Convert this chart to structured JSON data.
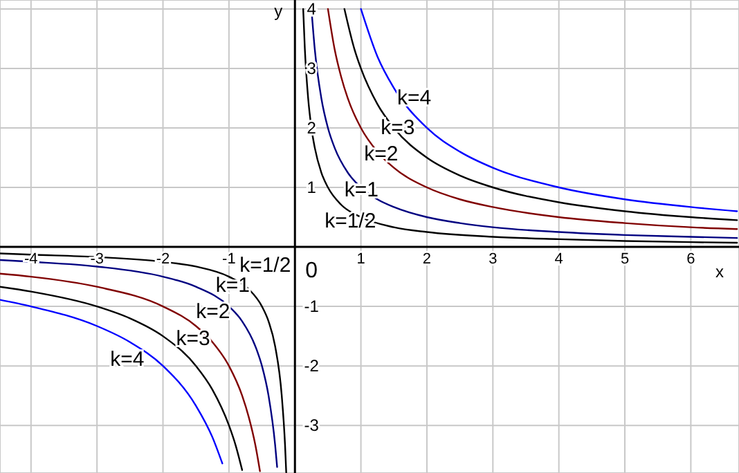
{
  "chart_data": {
    "type": "line",
    "xlabel": "x",
    "ylabel": "y",
    "xlim": [
      -4.47,
      6.73
    ],
    "ylim": [
      -3.8,
      4.15
    ],
    "xticks": [
      -4,
      -3,
      -2,
      -1,
      1,
      2,
      3,
      4,
      5,
      6
    ],
    "yticks": [
      -3,
      -2,
      -1,
      1,
      2,
      3,
      4
    ],
    "grid": true,
    "legend": false,
    "marker": "none",
    "line_style": "solid",
    "annotations": [
      "0"
    ],
    "series": [
      {
        "name": "k=1/2",
        "color": "#000000",
        "x": [
          -4.47,
          -4,
          -3,
          -2,
          -1.5,
          -1,
          -0.7,
          -0.5,
          -0.4,
          -0.3,
          -0.2,
          -0.15,
          -0.132,
          0,
          0.125,
          0.15,
          0.2,
          0.25,
          0.3,
          0.4,
          0.5,
          0.7,
          1,
          1.5,
          2,
          3,
          4,
          5,
          6,
          6.7
        ],
        "values": [
          -0.11,
          -0.13,
          -0.17,
          -0.25,
          -0.33,
          -0.5,
          -0.71,
          -1,
          -1.25,
          -1.67,
          -2.5,
          -3.33,
          -3.79,
          null,
          4,
          3.33,
          2.5,
          2,
          1.67,
          1.25,
          1,
          0.71,
          0.5,
          0.33,
          0.25,
          0.17,
          0.13,
          0.1,
          0.08,
          0.07
        ]
      },
      {
        "name": "k=1",
        "color": "#000080",
        "x": [
          -4.47,
          -4,
          -3,
          -2,
          -1.5,
          -1,
          -0.8,
          -0.6,
          -0.5,
          -0.4,
          -0.3,
          -0.27,
          0,
          0.25,
          0.3,
          0.4,
          0.5,
          0.6,
          0.8,
          1,
          1.25,
          1.5,
          2,
          2.5,
          3,
          4,
          5,
          6,
          6.7
        ],
        "values": [
          -0.22,
          -0.25,
          -0.33,
          -0.5,
          -0.67,
          -1,
          -1.25,
          -1.67,
          -2,
          -2.5,
          -3.33,
          -3.7,
          null,
          4,
          3.33,
          2.5,
          2,
          1.67,
          1.25,
          1,
          0.8,
          0.67,
          0.5,
          0.4,
          0.33,
          0.25,
          0.2,
          0.17,
          0.15
        ]
      },
      {
        "name": "k=2",
        "color": "#800000",
        "x": [
          -4.47,
          -4,
          -3,
          -2,
          -1.5,
          -1.25,
          -1,
          -0.8,
          -0.7,
          -0.6,
          -0.53,
          0,
          0.5,
          0.6,
          0.7,
          0.8,
          1,
          1.25,
          1.5,
          2,
          2.5,
          3,
          4,
          5,
          6,
          6.7
        ],
        "values": [
          -0.45,
          -0.5,
          -0.67,
          -1,
          -1.33,
          -1.6,
          -2,
          -2.5,
          -2.86,
          -3.33,
          -3.77,
          null,
          4,
          3.33,
          2.86,
          2.5,
          2,
          1.6,
          1.33,
          1,
          0.8,
          0.67,
          0.5,
          0.4,
          0.33,
          0.3
        ]
      },
      {
        "name": "k=3",
        "color": "#000000",
        "x": [
          -4.47,
          -4,
          -3,
          -2.5,
          -2,
          -1.5,
          -1.25,
          -1,
          -0.9,
          -0.8,
          0,
          0.75,
          0.9,
          1,
          1.25,
          1.5,
          2,
          2.5,
          3,
          4,
          5,
          6,
          6.7
        ],
        "values": [
          -0.67,
          -0.75,
          -1,
          -1.2,
          -1.5,
          -2,
          -2.4,
          -3,
          -3.33,
          -3.75,
          null,
          4,
          3.33,
          3,
          2.4,
          2,
          1.5,
          1.2,
          1,
          0.75,
          0.6,
          0.5,
          0.45
        ]
      },
      {
        "name": "k=4",
        "color": "#0000ff",
        "x": [
          -4.47,
          -4,
          -3,
          -2.5,
          -2,
          -1.5,
          -1.25,
          -1.1,
          0,
          1,
          1.25,
          1.5,
          2,
          2.5,
          3,
          4,
          5,
          6,
          6.7
        ],
        "values": [
          -0.89,
          -1,
          -1.33,
          -1.6,
          -2,
          -2.67,
          -3.2,
          -3.64,
          null,
          4,
          3.2,
          2.67,
          2,
          1.6,
          1.33,
          1,
          0.8,
          0.67,
          0.6
        ]
      }
    ]
  }
}
